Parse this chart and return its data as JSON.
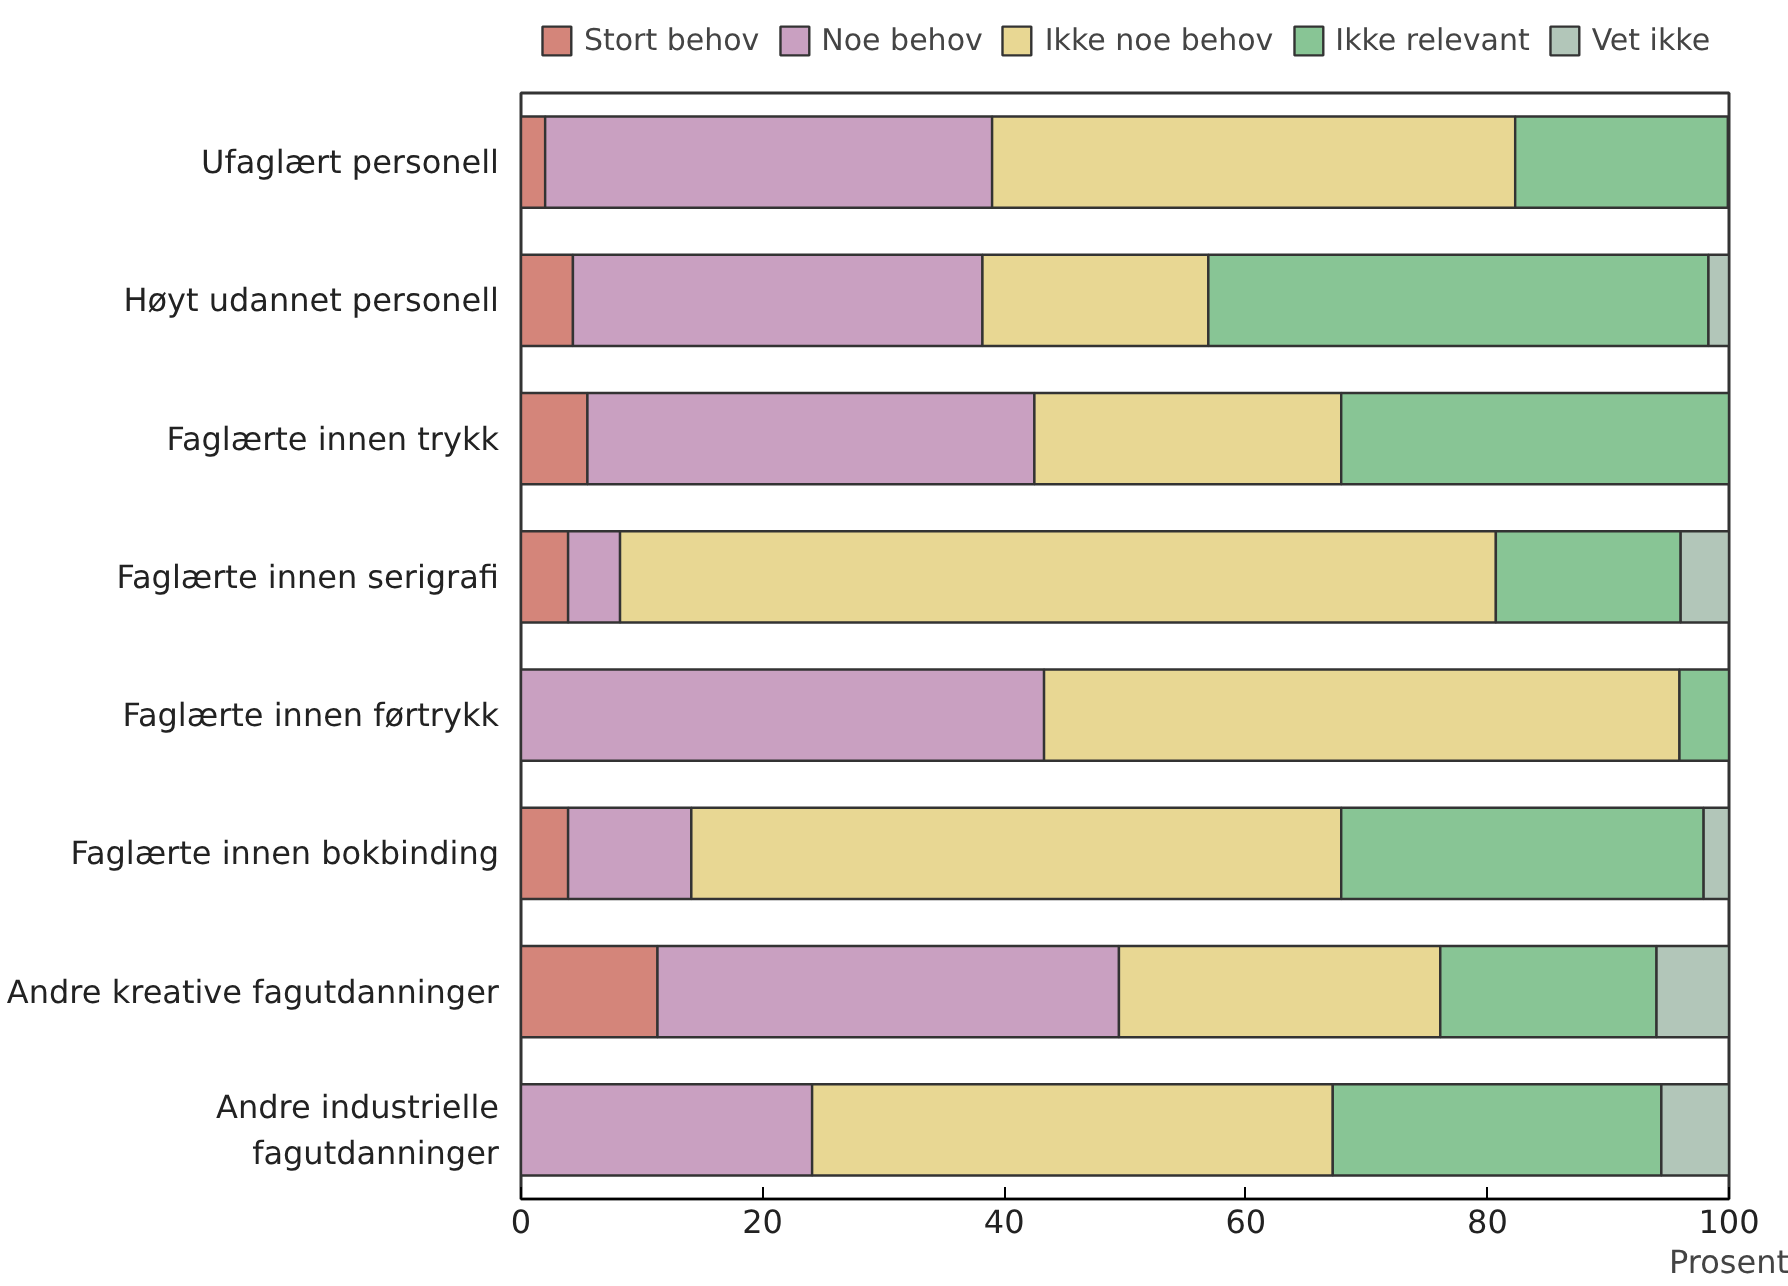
{
  "chart_data": {
    "type": "bar",
    "orientation": "horizontal",
    "stacked": true,
    "xlabel": "Prosent",
    "categories": [
      "Ufaglært personell",
      "Høyt udannet personell",
      "Faglærte innen trykk",
      "Faglærte innen serigrafi",
      "Faglærte innen førtrykk",
      "Faglærte innen bokbinding",
      "Andre kreative fagutdanninger",
      "Andre industrielle fagutdanninger"
    ],
    "series": [
      {
        "name": "Stort behov",
        "color": "#d4857a",
        "values": [
          2,
          4.3,
          5.5,
          3.9,
          0,
          3.9,
          11.3,
          0
        ]
      },
      {
        "name": "Noe behov",
        "color": "#c9a0c1",
        "values": [
          37,
          33.9,
          37,
          4.3,
          43.3,
          10.2,
          38.2,
          24.1
        ]
      },
      {
        "name": "Ikke noe behov",
        "color": "#e8d793",
        "values": [
          43.3,
          18.7,
          25.4,
          72.5,
          52.6,
          53.8,
          26.6,
          43.1
        ]
      },
      {
        "name": "Ikke relevant",
        "color": "#88c595",
        "values": [
          17.6,
          41.4,
          32.1,
          15.3,
          4.1,
          30,
          17.9,
          27.2
        ]
      },
      {
        "name": "Vet ikke",
        "color": "#b2c6b9",
        "values": [
          0,
          1.7,
          0,
          4,
          0,
          2.1,
          6,
          5.6
        ]
      }
    ],
    "xlim": [
      0,
      100
    ],
    "xticks": [
      0,
      20,
      40,
      60,
      80,
      100
    ],
    "grid": false,
    "legend": "top"
  }
}
